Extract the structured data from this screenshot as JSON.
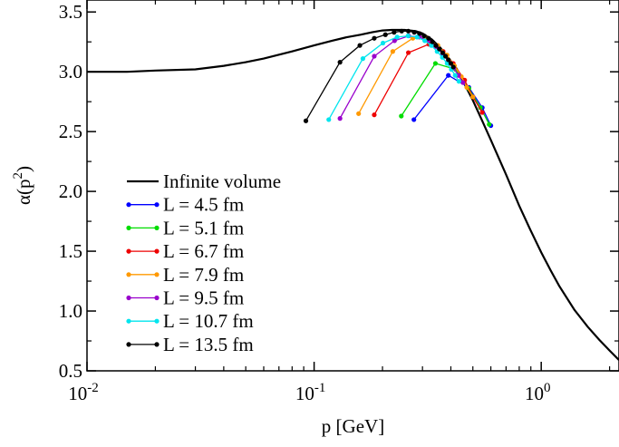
{
  "chart_data": {
    "type": "line",
    "xlabel": "p [GeV]",
    "ylabel_base": "α(p",
    "ylabel_exp": "2",
    "ylabel_close": ")",
    "xscale": "log",
    "xlim": [
      0.01,
      2.2
    ],
    "ylim": [
      0.5,
      3.6
    ],
    "grid": false,
    "legend_position": "left-middle",
    "x_ticks": [
      {
        "base": "10",
        "exp": "-2",
        "value": 0.01
      },
      {
        "base": "10",
        "exp": "-1",
        "value": 0.1
      },
      {
        "base": "10",
        "exp": "0",
        "value": 1
      }
    ],
    "y_ticks": [
      "0.5",
      "1.0",
      "1.5",
      "2.0",
      "2.5",
      "3.0",
      "3.5"
    ],
    "series": [
      {
        "name": "Infinite volume",
        "color": "#000000",
        "markers": false,
        "x": [
          0.01,
          0.015,
          0.02,
          0.03,
          0.04,
          0.05,
          0.06,
          0.08,
          0.1,
          0.12,
          0.14,
          0.16,
          0.18,
          0.2,
          0.22,
          0.25,
          0.28,
          0.3,
          0.33,
          0.36,
          0.4,
          0.45,
          0.5,
          0.55,
          0.6,
          0.65,
          0.7,
          0.8,
          0.9,
          1.0,
          1.1,
          1.2,
          1.4,
          1.6,
          1.8,
          2.0,
          2.2
        ],
        "y": [
          3.0,
          3.0,
          3.01,
          3.02,
          3.05,
          3.08,
          3.11,
          3.17,
          3.22,
          3.26,
          3.29,
          3.31,
          3.33,
          3.345,
          3.35,
          3.35,
          3.34,
          3.32,
          3.27,
          3.2,
          3.09,
          2.93,
          2.76,
          2.59,
          2.43,
          2.28,
          2.14,
          1.88,
          1.67,
          1.49,
          1.34,
          1.21,
          1.01,
          0.87,
          0.76,
          0.67,
          0.59
        ]
      },
      {
        "name": "L = 4.5 fm",
        "color": "#0000ff",
        "markers": true,
        "x": [
          0.275,
          0.39,
          0.48,
          0.55,
          0.6
        ],
        "y": [
          2.6,
          2.97,
          2.87,
          2.7,
          2.55
        ]
      },
      {
        "name": "L = 5.1 fm",
        "color": "#00dd00",
        "markers": true,
        "x": [
          0.242,
          0.342,
          0.42,
          0.48,
          0.54,
          0.59
        ],
        "y": [
          2.63,
          3.07,
          3.02,
          2.86,
          2.7,
          2.56
        ]
      },
      {
        "name": "L = 6.7 fm",
        "color": "#ee0000",
        "markers": true,
        "x": [
          0.184,
          0.26,
          0.32,
          0.37,
          0.41,
          0.46,
          0.5,
          0.55
        ],
        "y": [
          2.64,
          3.16,
          3.23,
          3.17,
          3.07,
          2.93,
          2.79,
          2.66
        ]
      },
      {
        "name": "L = 7.9 fm",
        "color": "#ff9900",
        "markers": true,
        "x": [
          0.157,
          0.222,
          0.272,
          0.314,
          0.351,
          0.385,
          0.415,
          0.445,
          0.47,
          0.5
        ],
        "y": [
          2.65,
          3.17,
          3.28,
          3.28,
          3.22,
          3.14,
          3.05,
          2.96,
          2.87,
          2.79
        ]
      },
      {
        "name": "L = 9.5 fm",
        "color": "#9900cc",
        "markers": true,
        "x": [
          0.13,
          0.184,
          0.226,
          0.261,
          0.291,
          0.319,
          0.345,
          0.368,
          0.39,
          0.412,
          0.432,
          0.452
        ],
        "y": [
          2.61,
          3.13,
          3.26,
          3.3,
          3.29,
          3.26,
          3.21,
          3.15,
          3.09,
          3.03,
          2.97,
          2.91
        ]
      },
      {
        "name": "L = 10.7 fm",
        "color": "#00e5ee",
        "markers": true,
        "x": [
          0.116,
          0.164,
          0.201,
          0.232,
          0.259,
          0.284,
          0.307,
          0.328,
          0.348,
          0.367,
          0.385,
          0.402,
          0.418,
          0.434
        ],
        "y": [
          2.6,
          3.11,
          3.24,
          3.29,
          3.3,
          3.29,
          3.26,
          3.22,
          3.17,
          3.12,
          3.07,
          3.02,
          2.97,
          2.92
        ]
      },
      {
        "name": "L = 13.5 fm",
        "color": "#000000",
        "markers": true,
        "x": [
          0.092,
          0.13,
          0.159,
          0.184,
          0.206,
          0.225,
          0.243,
          0.26,
          0.276,
          0.291,
          0.305,
          0.319,
          0.332,
          0.344,
          0.356,
          0.368,
          0.379,
          0.39,
          0.4,
          0.41
        ],
        "y": [
          2.59,
          3.08,
          3.22,
          3.28,
          3.31,
          3.33,
          3.34,
          3.34,
          3.33,
          3.32,
          3.3,
          3.28,
          3.25,
          3.22,
          3.19,
          3.16,
          3.13,
          3.1,
          3.07,
          3.04
        ]
      }
    ]
  }
}
